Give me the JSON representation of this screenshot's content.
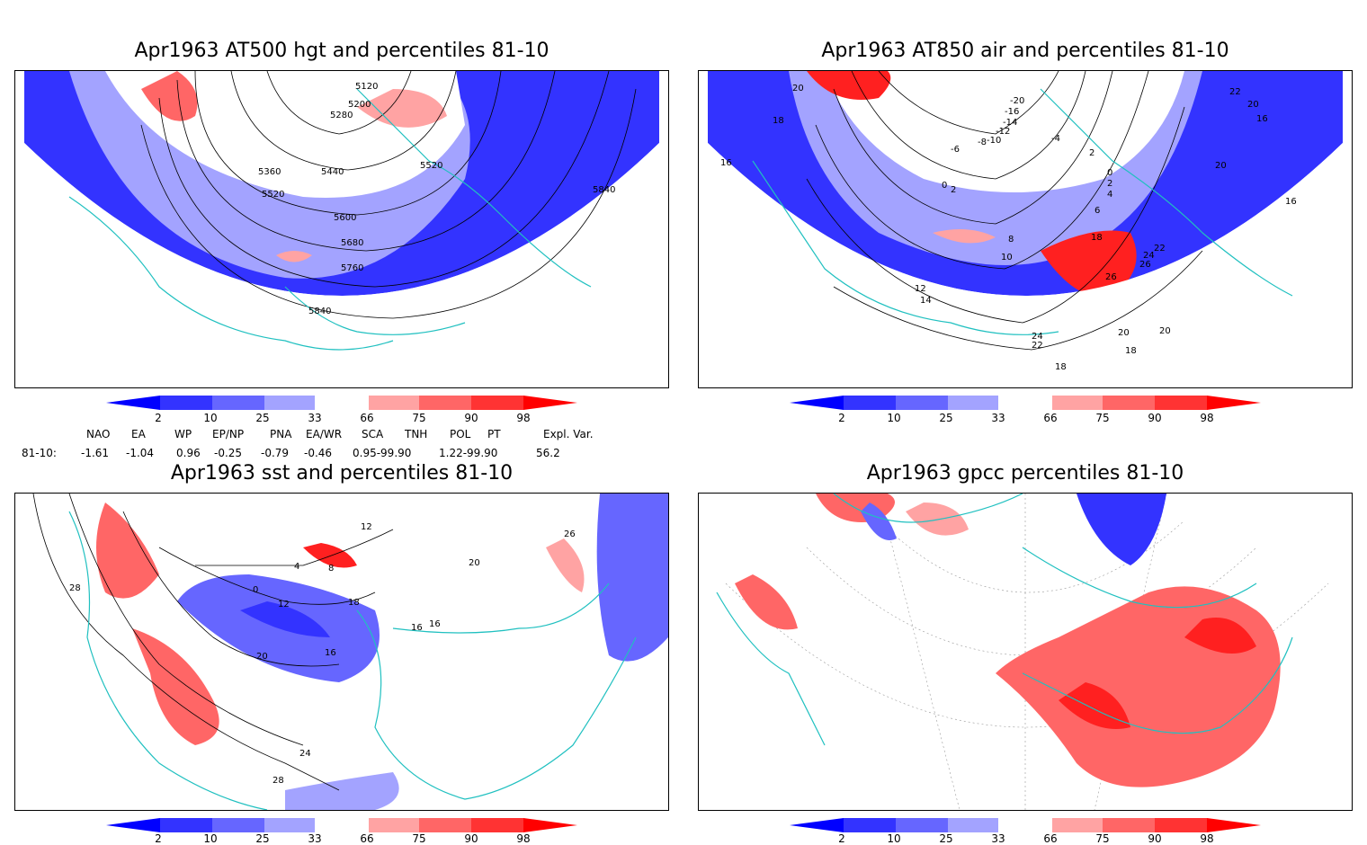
{
  "panels": [
    {
      "title": "Apr1963 AT500 hgt and percentiles 81-10",
      "contour_labels": [
        "5120",
        "5200",
        "5280",
        "5360",
        "5440",
        "5520",
        "5520",
        "5600",
        "5680",
        "5760",
        "5840",
        "5840"
      ]
    },
    {
      "title": "Apr1963 AT850 air and percentiles 81-10",
      "contour_labels": [
        "20",
        "18",
        "16",
        "22",
        "20",
        "16",
        "20",
        "16",
        "-20",
        "-16",
        "-14",
        "-12",
        "-10",
        "-6",
        "-8",
        "-4",
        "2",
        "0",
        "2",
        "0",
        "2",
        "4",
        "6",
        "8",
        "10",
        "12",
        "14",
        "18",
        "22",
        "24",
        "26",
        "26",
        "24",
        "22",
        "20",
        "20",
        "18",
        "18"
      ]
    },
    {
      "title": "Apr1963 sst and percentiles 81-10",
      "contour_labels": [
        "28",
        "0",
        "4",
        "8",
        "12",
        "16",
        "20",
        "24",
        "28",
        "16",
        "16",
        "18",
        "12",
        "20",
        "26"
      ]
    },
    {
      "title": "Apr1963 gpcc percentiles 81-10",
      "contour_labels": []
    }
  ],
  "colorbar": {
    "labels": [
      "2",
      "10",
      "25",
      "33",
      "66",
      "75",
      "90",
      "98"
    ],
    "colors": [
      "#0000ff",
      "#3333ff",
      "#6666ff",
      "#a3a3ff",
      "#ffffff",
      "#ffa3a3",
      "#ff6666",
      "#ff3333",
      "#ff0000"
    ]
  },
  "indices": {
    "headers": [
      "NAO",
      "EA",
      "WP",
      "EP/NP",
      "PNA",
      "EA/WR",
      "SCA",
      "TNH",
      "POL",
      "PT",
      "Expl. Var."
    ],
    "row_label": "81-10:",
    "values": [
      "-1.61",
      "-1.04",
      "0.96",
      "-0.25",
      "-0.79",
      "-0.46",
      "0.95-99.90",
      "1.22-99.90",
      "56.2"
    ]
  },
  "colors": {
    "land_outline": "#20c0c0",
    "blue_strong": "#0000ff",
    "blue_mid": "#6666ff",
    "red_strong": "#ff2020",
    "red_light": "#ffa3a3"
  }
}
